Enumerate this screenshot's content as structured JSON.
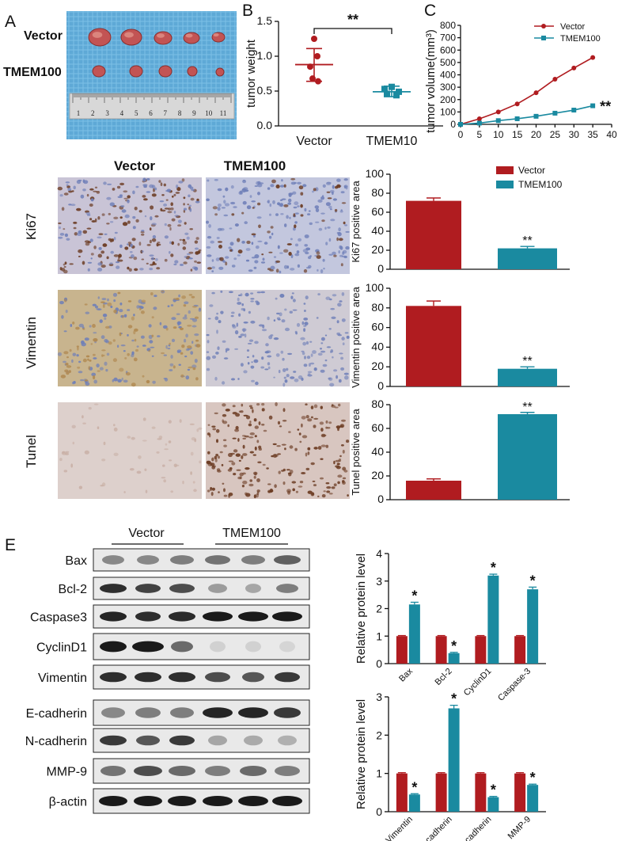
{
  "panel_labels": {
    "a": "A",
    "b": "B",
    "c": "C",
    "e": "E"
  },
  "photo": {
    "row1": "Vector",
    "row2": "TMEM100",
    "ruler_numbers": [
      "1",
      "2",
      "3",
      "4",
      "5",
      "6",
      "7",
      "8",
      "9",
      "10",
      "11"
    ]
  },
  "ihc": {
    "columns": [
      "Vector",
      "TMEM100"
    ],
    "rows": [
      "Ki67",
      "Vimentin",
      "Tunel"
    ],
    "colors": {
      "ki67_vector_bg": "#c9c4d6",
      "ki67_tmem_bg": "#c3c7de",
      "vim_vector_bg": "#c8b48e",
      "vim_tmem_bg": "#cfcbd4",
      "tunel_vector_bg": "#ddd0cc",
      "tunel_tmem_bg": "#d8c6c0",
      "nucleus_brown": "#6b3b22",
      "nucleus_blue": "#6f7fb8"
    }
  },
  "western": {
    "group_labels": [
      "Vector",
      "TMEM100"
    ],
    "proteins": [
      "Bax",
      "Bcl-2",
      "Caspase3",
      "CyclinD1",
      "Vimentin",
      "E-cadherin",
      "N-cadherin",
      "MMP-9",
      "β-actin"
    ]
  },
  "colors": {
    "vector": "#b01c20",
    "tmem100": "#1a8aa0"
  },
  "chart_data": [
    {
      "id": "B",
      "type": "scatter",
      "categories": [
        "Vector",
        "TMEM10"
      ],
      "ylabel": "tumor weight",
      "ylim": [
        0,
        1.5
      ],
      "yticks": [
        "0.0",
        "0.5",
        "1.0",
        "1.5"
      ],
      "series": [
        {
          "category": "Vector",
          "points": [
            1.25,
            1.0,
            0.85,
            0.68,
            0.64
          ],
          "mean": 0.88,
          "sd_low": 0.64,
          "sd_high": 1.11
        },
        {
          "category": "TMEM10",
          "points": [
            0.56,
            0.53,
            0.49,
            0.46,
            0.44
          ],
          "mean": 0.49,
          "sd_low": 0.42,
          "sd_high": 0.57
        }
      ],
      "annotation": "**"
    },
    {
      "id": "C",
      "type": "line",
      "ylabel": "tumor volume(mm³)",
      "xlim": [
        0,
        40
      ],
      "xticks": [
        "0",
        "5",
        "10",
        "15",
        "20",
        "25",
        "30",
        "35",
        "40"
      ],
      "ylim": [
        0,
        800
      ],
      "yticks": [
        "0",
        "100",
        "200",
        "300",
        "400",
        "500",
        "600",
        "700",
        "800"
      ],
      "x": [
        0,
        5,
        10,
        15,
        20,
        25,
        30,
        35
      ],
      "series": [
        {
          "name": "Vector",
          "values": [
            0,
            45,
            100,
            165,
            255,
            365,
            455,
            540
          ]
        },
        {
          "name": "TMEM100",
          "values": [
            0,
            10,
            30,
            45,
            65,
            90,
            115,
            150
          ]
        }
      ],
      "annotation": "**",
      "legend": "top-left"
    },
    {
      "id": "D1",
      "type": "bar",
      "categories": [
        "Vector",
        "TMEM100"
      ],
      "ylabel": "Ki67 positive area",
      "ylim": [
        0,
        100
      ],
      "yticks": [
        "0",
        "20",
        "40",
        "60",
        "80",
        "100"
      ],
      "values": [
        72,
        22
      ],
      "errors": [
        3,
        2
      ],
      "annotation": "**",
      "legend_labels": [
        "Vector",
        "TMEM100"
      ]
    },
    {
      "id": "D2",
      "type": "bar",
      "categories": [
        "Vector",
        "TMEM100"
      ],
      "ylabel": "Vimentin positive area",
      "ylim": [
        0,
        100
      ],
      "yticks": [
        "0",
        "20",
        "40",
        "60",
        "80",
        "100"
      ],
      "values": [
        82,
        18
      ],
      "errors": [
        5,
        2
      ],
      "annotation": "**"
    },
    {
      "id": "D3",
      "type": "bar",
      "categories": [
        "Vector",
        "TMEM100"
      ],
      "ylabel": "Tunel positive area",
      "ylim": [
        0,
        80
      ],
      "yticks": [
        "0",
        "20",
        "40",
        "60",
        "80"
      ],
      "values": [
        16,
        72
      ],
      "errors": [
        1.5,
        1.5
      ],
      "annotation": "**"
    },
    {
      "id": "E1",
      "type": "bar",
      "categories": [
        "Bax",
        "Bcl-2",
        "CyclinD1",
        "Caspase-3"
      ],
      "ylabel": "Relative protein level",
      "ylim": [
        0,
        4
      ],
      "yticks": [
        "0",
        "1",
        "2",
        "3",
        "4"
      ],
      "series": [
        {
          "values": [
            1.0,
            1.0,
            1.0,
            1.0
          ],
          "errors": [
            0.02,
            0.02,
            0.02,
            0.02
          ]
        },
        {
          "values": [
            2.15,
            0.38,
            3.2,
            2.7
          ],
          "errors": [
            0.08,
            0.03,
            0.05,
            0.08
          ]
        }
      ],
      "annotation": "*"
    },
    {
      "id": "E2",
      "type": "bar",
      "categories": [
        "Vimentin",
        "E-cadherin",
        "N-cadherin",
        "MMP-9"
      ],
      "ylabel": "Relative protein level",
      "ylim": [
        0,
        3
      ],
      "yticks": [
        "0",
        "1",
        "2",
        "3"
      ],
      "series": [
        {
          "values": [
            1.0,
            1.0,
            1.0,
            1.0
          ],
          "errors": [
            0.02,
            0.02,
            0.02,
            0.02
          ]
        },
        {
          "values": [
            0.45,
            2.7,
            0.38,
            0.7
          ],
          "errors": [
            0.02,
            0.08,
            0.02,
            0.02
          ]
        }
      ],
      "annotation": "*"
    }
  ]
}
